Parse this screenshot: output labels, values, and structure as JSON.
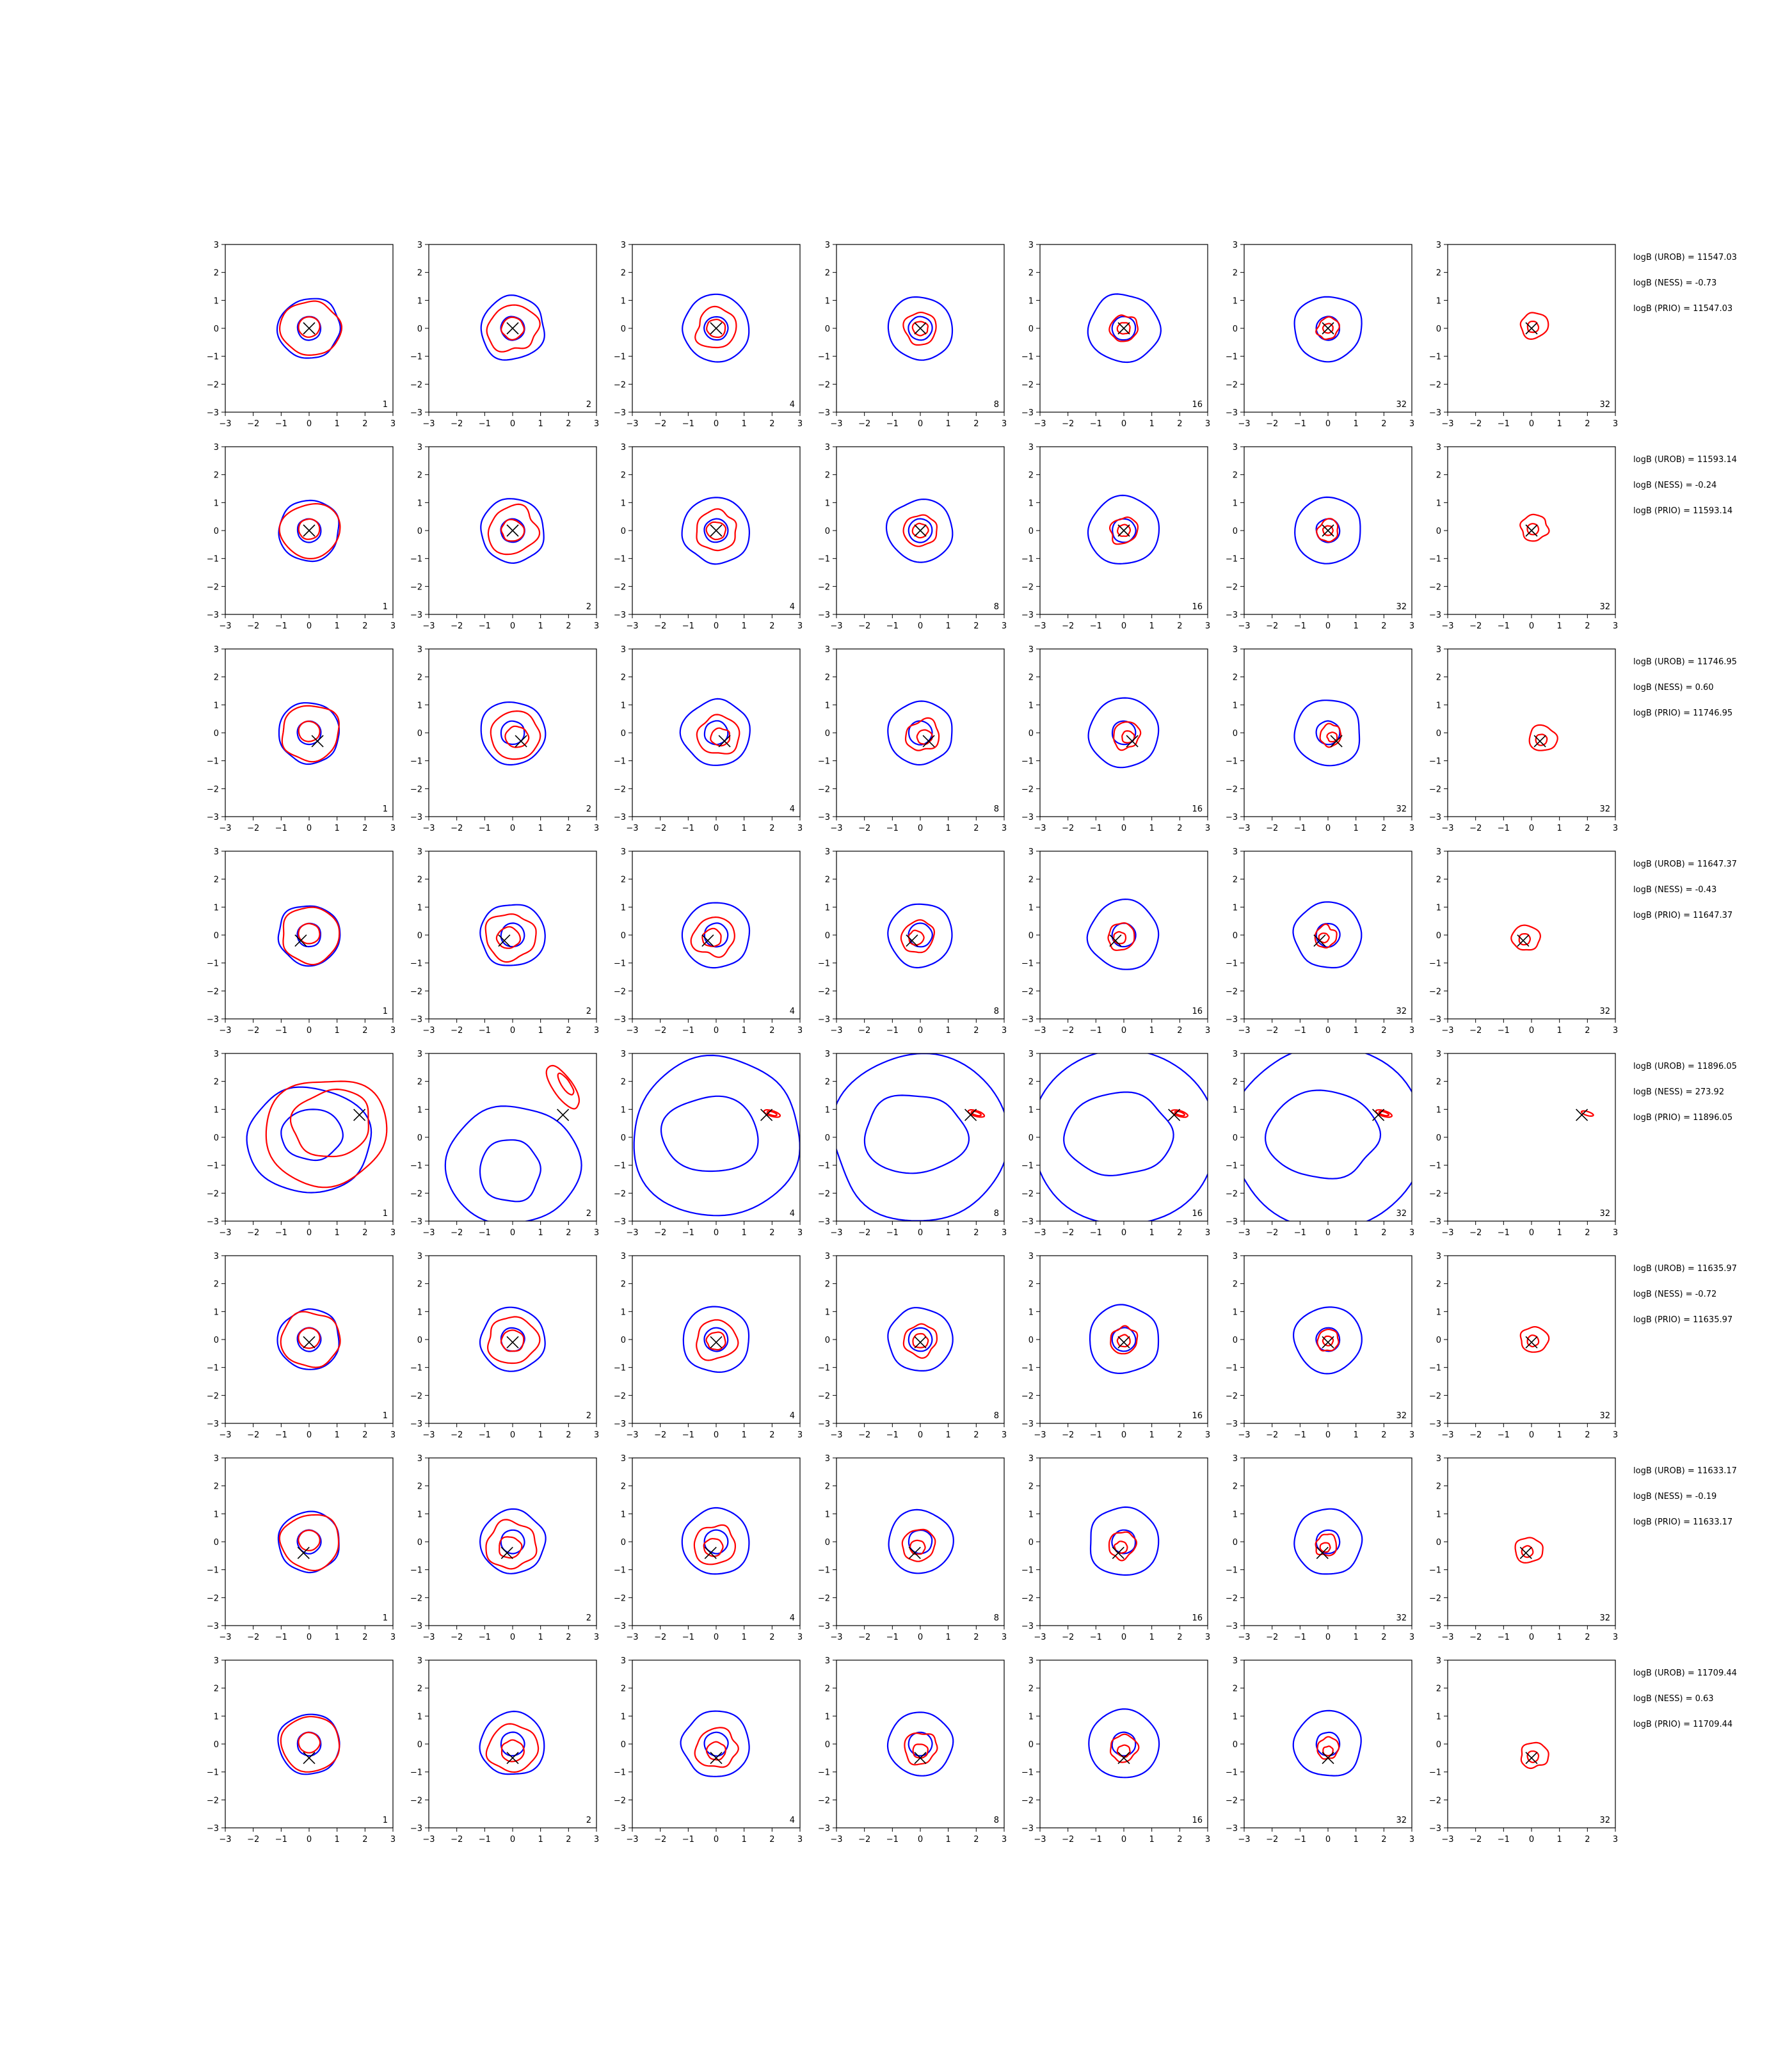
{
  "chart_data": {
    "type": "contour-grid",
    "description_rows": 8,
    "description_cols": 7,
    "xlim": [
      -3,
      3
    ],
    "ylim": [
      -3,
      3
    ],
    "ticks": [
      -3,
      -2,
      -1,
      0,
      1,
      2,
      3
    ],
    "tick_labels": [
      "−3",
      "−2",
      "−1",
      "0",
      "1",
      "2",
      "3"
    ],
    "series_colors": {
      "blue": "#0000ff",
      "red": "#ff0000",
      "marker": "#000000"
    },
    "rows": [
      {
        "truth": [
          0.0,
          0.0
        ],
        "panel_labels": [
          "1",
          "2",
          "4",
          "8",
          "16",
          "32",
          "32"
        ],
        "annotations": [
          "logB (UROB) = 11547.03",
          "logB (NESS) = -0.73",
          "logB (PRIO) = 11547.03"
        ]
      },
      {
        "truth": [
          0.0,
          0.0
        ],
        "panel_labels": [
          "1",
          "2",
          "4",
          "8",
          "16",
          "32",
          "32"
        ],
        "annotations": [
          "logB (UROB) = 11593.14",
          "logB (NESS) = -0.24",
          "logB (PRIO) = 11593.14"
        ]
      },
      {
        "truth": [
          0.3,
          -0.3
        ],
        "panel_labels": [
          "1",
          "2",
          "4",
          "8",
          "16",
          "32",
          "32"
        ],
        "annotations": [
          "logB (UROB) = 11746.95",
          "logB (NESS) = 0.60",
          "logB (PRIO) = 11746.95"
        ]
      },
      {
        "truth": [
          -0.3,
          -0.2
        ],
        "panel_labels": [
          "1",
          "2",
          "4",
          "8",
          "16",
          "32",
          "32"
        ],
        "annotations": [
          "logB (UROB) = 11647.37",
          "logB (NESS) = -0.43",
          "logB (PRIO) = 11647.37"
        ]
      },
      {
        "truth": [
          1.8,
          0.8
        ],
        "panel_labels": [
          "1",
          "2",
          "4",
          "8",
          "16",
          "32",
          "32"
        ],
        "annotations": [
          "logB (UROB) = 11896.05",
          "logB (NESS) = 273.92",
          "logB (PRIO) = 11896.05"
        ]
      },
      {
        "truth": [
          0.0,
          -0.1
        ],
        "panel_labels": [
          "1",
          "2",
          "4",
          "8",
          "16",
          "32",
          "32"
        ],
        "annotations": [
          "logB (UROB) = 11635.97",
          "logB (NESS) = -0.72",
          "logB (PRIO) = 11635.97"
        ]
      },
      {
        "truth": [
          -0.2,
          -0.4
        ],
        "panel_labels": [
          "1",
          "2",
          "4",
          "8",
          "16",
          "32",
          "32"
        ],
        "annotations": [
          "logB (UROB) = 11633.17",
          "logB (NESS) = -0.19",
          "logB (PRIO) = 11633.17"
        ]
      },
      {
        "truth": [
          0.0,
          -0.5
        ],
        "panel_labels": [
          "1",
          "2",
          "4",
          "8",
          "16",
          "32",
          "32"
        ],
        "annotations": [
          "logB (UROB) = 11709.44",
          "logB (NESS) = 0.63",
          "logB (PRIO) = 11709.44"
        ]
      }
    ]
  }
}
